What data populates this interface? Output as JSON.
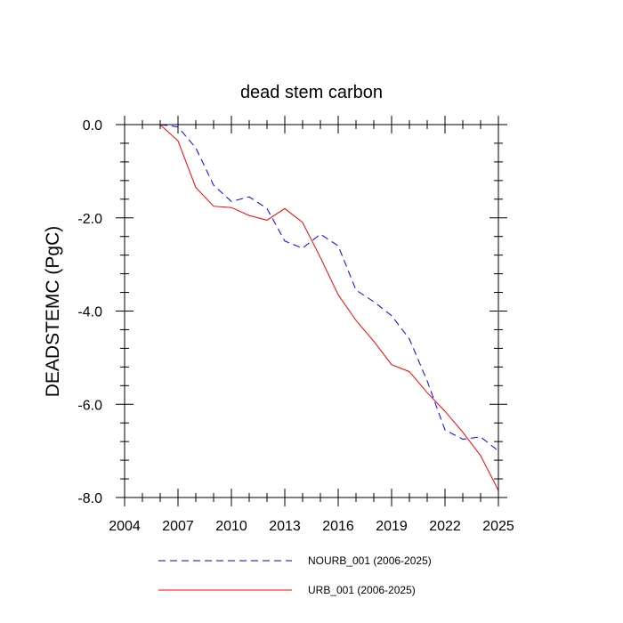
{
  "chart_data": {
    "type": "line",
    "title": "dead stem carbon",
    "xlabel": "",
    "ylabel": "DEADSTEMC  (PgC)",
    "xlim": [
      2004,
      2025
    ],
    "ylim": [
      -8.0,
      0.0
    ],
    "xticks": [
      2004,
      2007,
      2010,
      2013,
      2016,
      2019,
      2022,
      2025
    ],
    "xtick_labels": [
      "2004",
      "2007",
      "2010",
      "2013",
      "2016",
      "2019",
      "2022",
      "2025"
    ],
    "yticks": [
      0,
      -2,
      -4,
      -6,
      -8
    ],
    "ytick_labels": [
      "0.0",
      "-2.0",
      "-4.0",
      "-6.0",
      "-8.0"
    ],
    "grid": false,
    "legend_position": "bottom",
    "x": [
      2006,
      2007,
      2008,
      2009,
      2010,
      2011,
      2012,
      2013,
      2014,
      2015,
      2016,
      2017,
      2018,
      2019,
      2020,
      2021,
      2022,
      2023,
      2024,
      2025
    ],
    "series": [
      {
        "name": "NOURB_001 (2006-2025)",
        "color": "#0000ff",
        "style": "dashed",
        "values": [
          0.0,
          -0.05,
          -0.5,
          -1.3,
          -1.65,
          -1.55,
          -1.8,
          -2.5,
          -2.65,
          -2.35,
          -2.6,
          -3.55,
          -3.8,
          -4.1,
          -4.6,
          -5.5,
          -6.55,
          -6.75,
          -6.7,
          -7.0
        ]
      },
      {
        "name": "URB_001 (2006-2025)",
        "color": "#ff0000",
        "style": "solid",
        "values": [
          0.0,
          -0.35,
          -1.35,
          -1.75,
          -1.78,
          -1.95,
          -2.05,
          -1.8,
          -2.1,
          -2.85,
          -3.65,
          -4.2,
          -4.65,
          -5.15,
          -5.3,
          -5.75,
          -6.15,
          -6.6,
          -7.1,
          -7.85
        ]
      }
    ]
  }
}
